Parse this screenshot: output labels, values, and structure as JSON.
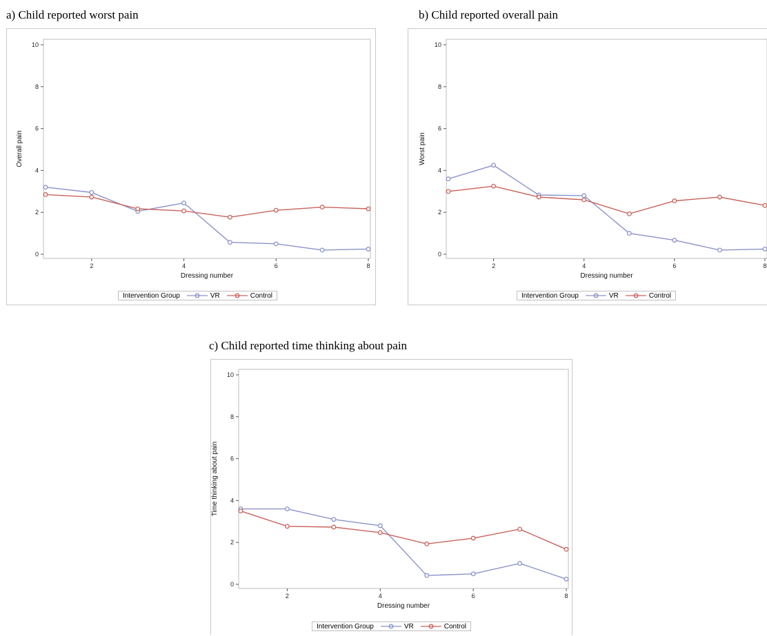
{
  "chart_data": [
    {
      "type": "line",
      "caption": "a) Child reported worst pain",
      "xlabel": "Dressing number",
      "ylabel": "Overall pain",
      "xlim": [
        1,
        8
      ],
      "ylim": [
        0,
        10
      ],
      "xticks": [
        2,
        4,
        6,
        8
      ],
      "yticks": [
        0,
        2,
        4,
        6,
        8,
        10
      ],
      "x": [
        1,
        2,
        3,
        4,
        5,
        6,
        7,
        8
      ],
      "series": [
        {
          "name": "VR",
          "color": "#8a93c9",
          "values": [
            3.2,
            2.95,
            2.05,
            2.45,
            0.57,
            0.5,
            0.2,
            0.25
          ]
        },
        {
          "name": "Control",
          "color": "#c9625b",
          "values": [
            2.85,
            2.73,
            2.17,
            2.07,
            1.77,
            2.1,
            2.25,
            2.17
          ]
        }
      ],
      "legend_title": "Intervention Group"
    },
    {
      "type": "line",
      "caption": "b) Child reported overall pain",
      "xlabel": "Dressing number",
      "ylabel": "Worst pain",
      "xlim": [
        1,
        8
      ],
      "ylim": [
        0,
        10
      ],
      "xticks": [
        2,
        4,
        6,
        8
      ],
      "yticks": [
        0,
        2,
        4,
        6,
        8,
        10
      ],
      "x": [
        1,
        2,
        3,
        4,
        5,
        6,
        7,
        8
      ],
      "series": [
        {
          "name": "VR",
          "color": "#8a93c9",
          "values": [
            3.6,
            4.25,
            2.83,
            2.8,
            1.0,
            0.67,
            0.2,
            0.25
          ]
        },
        {
          "name": "Control",
          "color": "#c9625b",
          "values": [
            3.0,
            3.25,
            2.73,
            2.6,
            1.93,
            2.55,
            2.73,
            2.33
          ]
        }
      ],
      "legend_title": "Intervention Group"
    },
    {
      "type": "line",
      "caption": "c) Child reported time thinking about pain",
      "xlabel": "Dressing number",
      "ylabel": "Time thinking about pain",
      "xlim": [
        1,
        8
      ],
      "ylim": [
        0,
        10
      ],
      "xticks": [
        2,
        4,
        6,
        8
      ],
      "yticks": [
        0,
        2,
        4,
        6,
        8,
        10
      ],
      "x": [
        1,
        2,
        3,
        4,
        5,
        6,
        7,
        8
      ],
      "series": [
        {
          "name": "VR",
          "color": "#8a93c9",
          "values": [
            3.6,
            3.6,
            3.1,
            2.8,
            0.42,
            0.5,
            1.0,
            0.25
          ]
        },
        {
          "name": "Control",
          "color": "#c9625b",
          "values": [
            3.5,
            2.77,
            2.73,
            2.47,
            1.93,
            2.2,
            2.63,
            1.67
          ]
        }
      ],
      "legend_title": "Intervention Group"
    }
  ]
}
